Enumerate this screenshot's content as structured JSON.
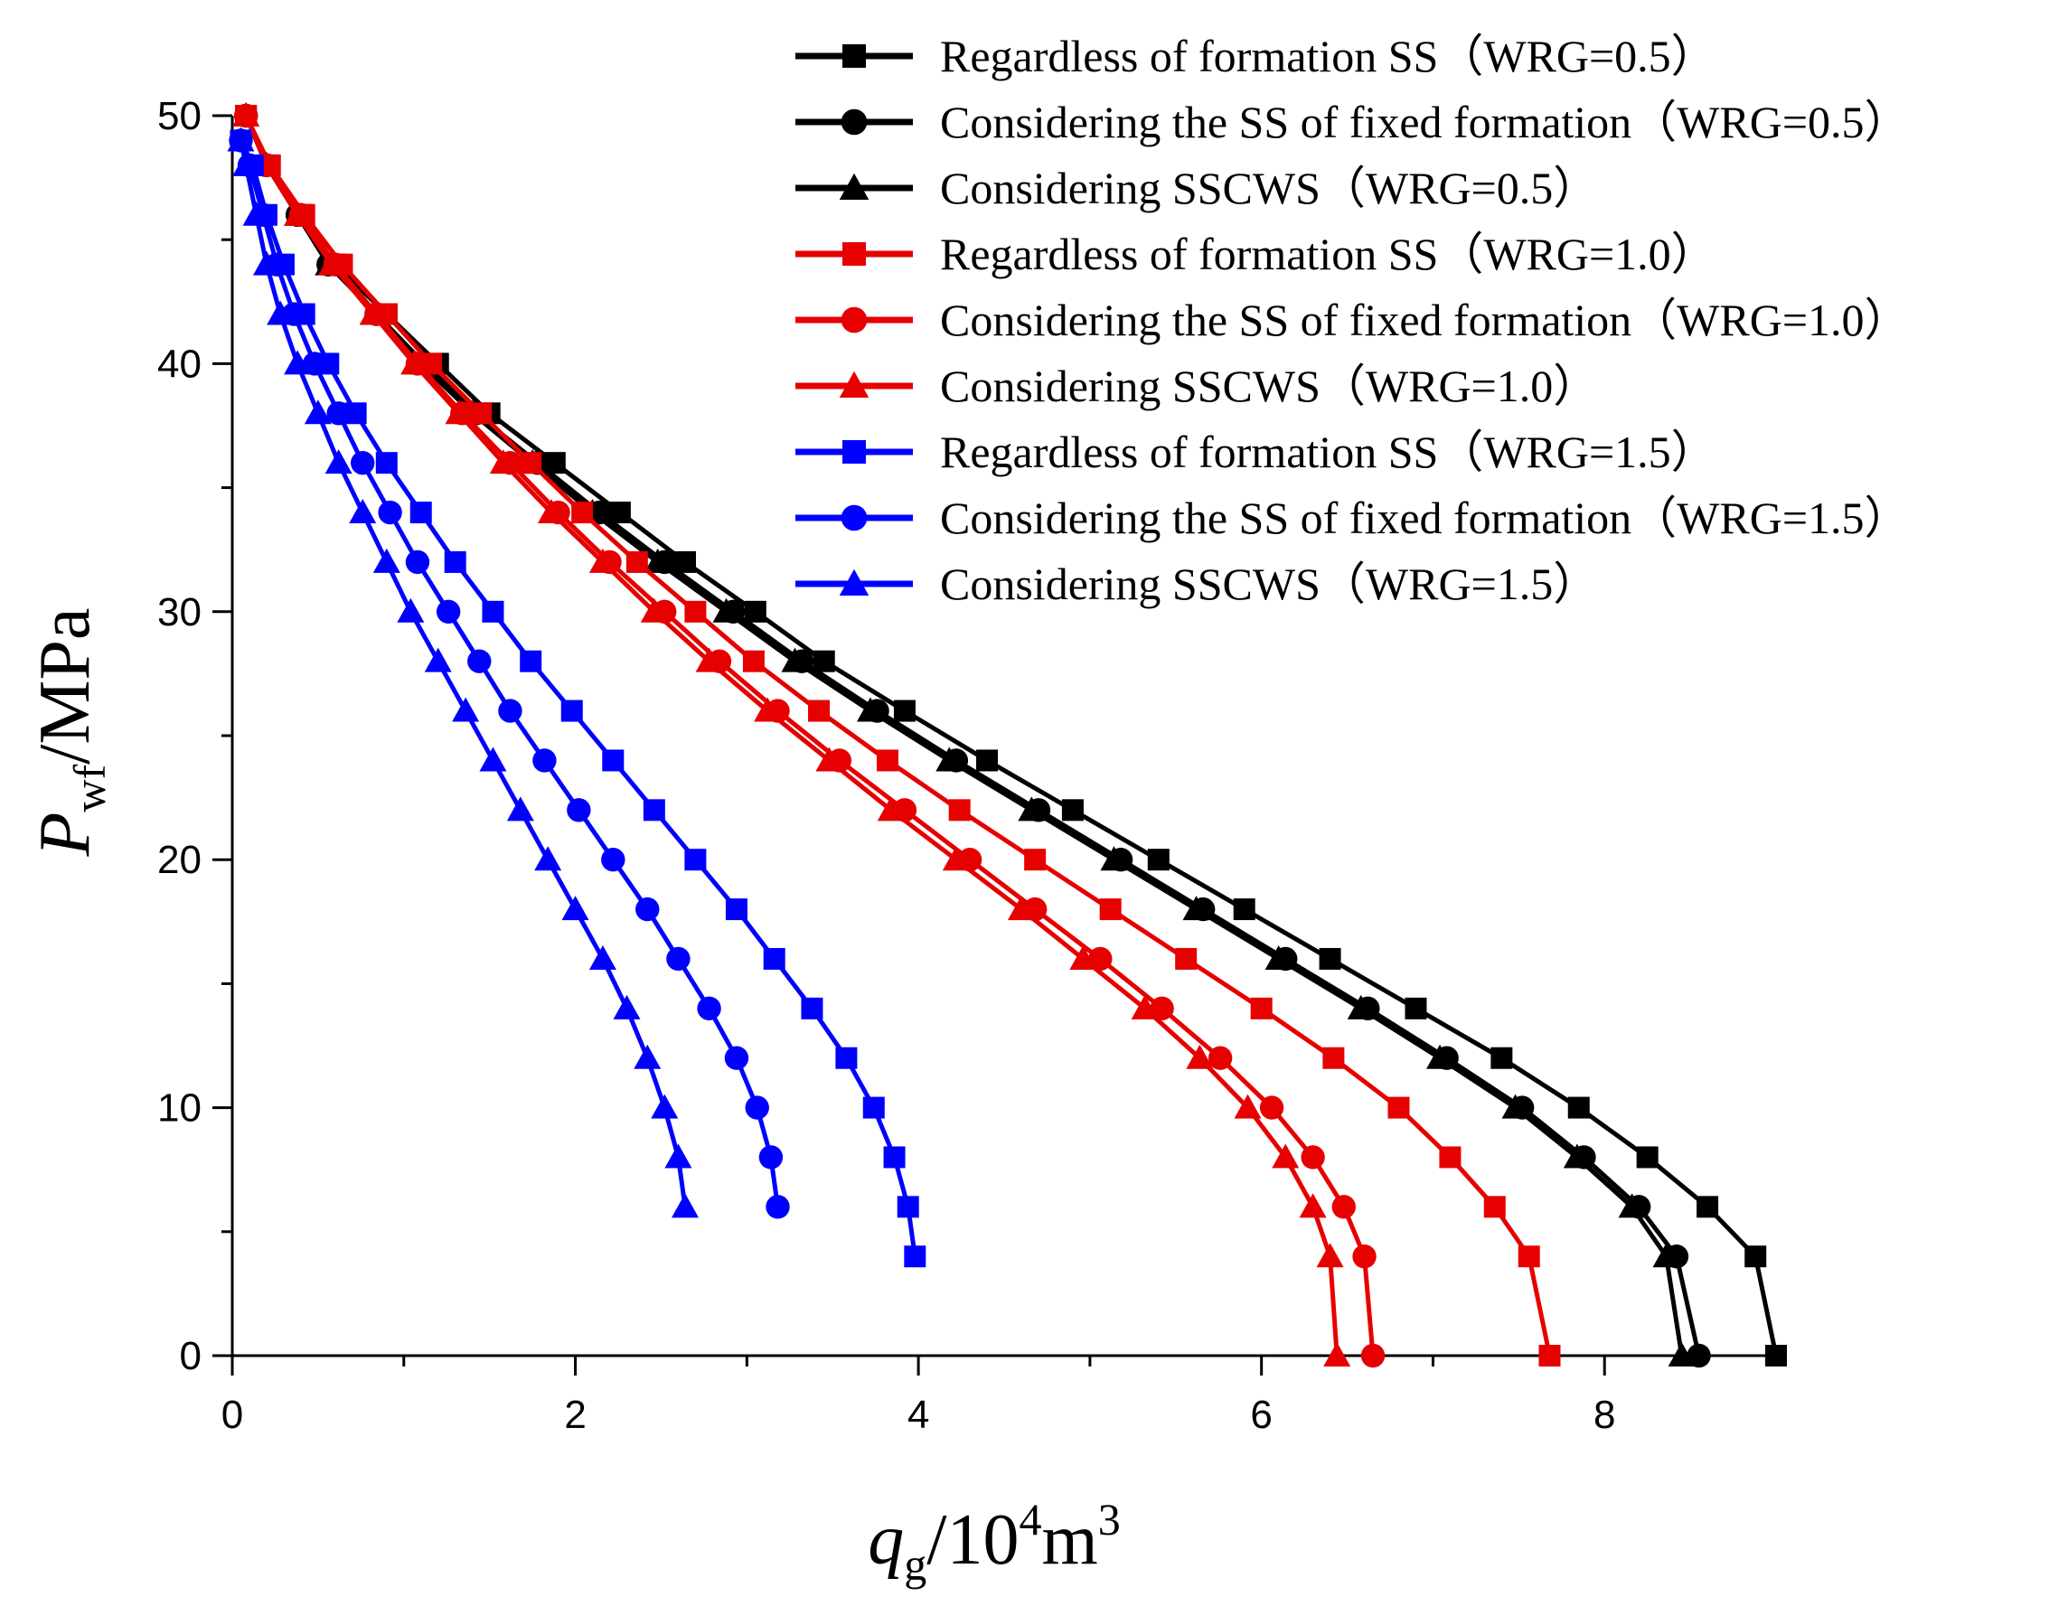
{
  "chart_data": {
    "type": "line",
    "title": "",
    "xlabel": {
      "main": "q",
      "sub": "g",
      "rest": "/10",
      "sup": "4",
      "unit": "m",
      "unit_sup": "3"
    },
    "ylabel": {
      "main": "P",
      "sub": "wf",
      "rest": "/MPa"
    },
    "xlim": [
      0,
      9
    ],
    "ylim": [
      0,
      50
    ],
    "x_ticks": [
      0,
      2,
      4,
      6,
      8
    ],
    "y_ticks": [
      0,
      10,
      20,
      30,
      40,
      50
    ],
    "grid": false,
    "legend_position": "top-right",
    "series": [
      {
        "name": "Regardless of formation SS（WRG=0.5）",
        "color": "#000000",
        "marker": "square",
        "x": [
          0.08,
          0.2,
          0.4,
          0.6,
          0.9,
          1.2,
          1.5,
          1.88,
          2.26,
          2.64,
          3.05,
          3.45,
          3.92,
          4.4,
          4.9,
          5.4,
          5.9,
          6.4,
          6.9,
          7.4,
          7.85,
          8.25,
          8.6,
          8.88,
          9.0
        ],
        "y": [
          50,
          48,
          46,
          44,
          42,
          40,
          38,
          36,
          34,
          32,
          30,
          28,
          26,
          24,
          22,
          20,
          18,
          16,
          14,
          12,
          10,
          8,
          6,
          4,
          0
        ]
      },
      {
        "name": "Considering the SS of fixed formation（WRG=0.5）",
        "color": "#000000",
        "marker": "circle",
        "x": [
          0.08,
          0.2,
          0.38,
          0.56,
          0.84,
          1.12,
          1.42,
          1.78,
          2.14,
          2.52,
          2.92,
          3.32,
          3.76,
          4.22,
          4.7,
          5.18,
          5.66,
          6.14,
          6.62,
          7.08,
          7.52,
          7.88,
          8.2,
          8.42,
          8.55
        ],
        "y": [
          50,
          48,
          46,
          44,
          42,
          40,
          38,
          36,
          34,
          32,
          30,
          28,
          26,
          24,
          22,
          20,
          18,
          16,
          14,
          12,
          10,
          8,
          6,
          4,
          0
        ]
      },
      {
        "name": "Considering SSCWS（WRG=0.5）",
        "color": "#000000",
        "marker": "triangle",
        "x": [
          0.08,
          0.2,
          0.38,
          0.56,
          0.84,
          1.1,
          1.4,
          1.75,
          2.1,
          2.48,
          2.88,
          3.28,
          3.72,
          4.18,
          4.66,
          5.14,
          5.62,
          6.1,
          6.58,
          7.04,
          7.48,
          7.84,
          8.16,
          8.36,
          8.45
        ],
        "y": [
          50,
          48,
          46,
          44,
          42,
          40,
          38,
          36,
          34,
          32,
          30,
          28,
          26,
          24,
          22,
          20,
          18,
          16,
          14,
          12,
          10,
          8,
          6,
          4,
          0
        ]
      },
      {
        "name": "Regardless of formation SS（WRG=1.0）",
        "color": "#e60000",
        "marker": "square",
        "x": [
          0.08,
          0.22,
          0.42,
          0.64,
          0.9,
          1.16,
          1.45,
          1.74,
          2.04,
          2.36,
          2.7,
          3.04,
          3.42,
          3.82,
          4.24,
          4.68,
          5.12,
          5.56,
          6.0,
          6.42,
          6.8,
          7.1,
          7.36,
          7.56,
          7.68
        ],
        "y": [
          50,
          48,
          46,
          44,
          42,
          40,
          38,
          36,
          34,
          32,
          30,
          28,
          26,
          24,
          22,
          20,
          18,
          16,
          14,
          12,
          10,
          8,
          6,
          4,
          0
        ]
      },
      {
        "name": "Considering the SS of fixed formation（WRG=1.0）",
        "color": "#e60000",
        "marker": "circle",
        "x": [
          0.08,
          0.2,
          0.4,
          0.6,
          0.84,
          1.08,
          1.34,
          1.62,
          1.9,
          2.2,
          2.52,
          2.84,
          3.18,
          3.54,
          3.92,
          4.3,
          4.68,
          5.06,
          5.42,
          5.76,
          6.06,
          6.3,
          6.48,
          6.6,
          6.65
        ],
        "y": [
          50,
          48,
          46,
          44,
          42,
          40,
          38,
          36,
          34,
          32,
          30,
          28,
          26,
          24,
          22,
          20,
          18,
          16,
          14,
          12,
          10,
          8,
          6,
          4,
          0
        ]
      },
      {
        "name": "Considering SSCWS（WRG=1.0）",
        "color": "#e60000",
        "marker": "triangle",
        "x": [
          0.08,
          0.2,
          0.38,
          0.58,
          0.82,
          1.06,
          1.32,
          1.58,
          1.86,
          2.16,
          2.46,
          2.78,
          3.12,
          3.48,
          3.84,
          4.22,
          4.6,
          4.96,
          5.32,
          5.64,
          5.92,
          6.14,
          6.3,
          6.4,
          6.44
        ],
        "y": [
          50,
          48,
          46,
          44,
          42,
          40,
          38,
          36,
          34,
          32,
          30,
          28,
          26,
          24,
          22,
          20,
          18,
          16,
          14,
          12,
          10,
          8,
          6,
          4,
          0
        ]
      },
      {
        "name": "Regardless of formation SS（WRG=1.5）",
        "color": "#0000ff",
        "marker": "square",
        "x": [
          0.05,
          0.12,
          0.2,
          0.3,
          0.42,
          0.56,
          0.72,
          0.9,
          1.1,
          1.3,
          1.52,
          1.74,
          1.98,
          2.22,
          2.46,
          2.7,
          2.94,
          3.16,
          3.38,
          3.58,
          3.74,
          3.86,
          3.94,
          3.98
        ],
        "y": [
          49,
          48,
          46,
          44,
          42,
          40,
          38,
          36,
          34,
          32,
          30,
          28,
          26,
          24,
          22,
          20,
          18,
          16,
          14,
          12,
          10,
          8,
          6,
          4
        ]
      },
      {
        "name": "Considering the SS of fixed formation（WRG=1.5）",
        "color": "#0000ff",
        "marker": "circle",
        "x": [
          0.05,
          0.1,
          0.18,
          0.26,
          0.36,
          0.48,
          0.62,
          0.76,
          0.92,
          1.08,
          1.26,
          1.44,
          1.62,
          1.82,
          2.02,
          2.22,
          2.42,
          2.6,
          2.78,
          2.94,
          3.06,
          3.14,
          3.18
        ],
        "y": [
          49,
          48,
          46,
          44,
          42,
          40,
          38,
          36,
          34,
          32,
          30,
          28,
          26,
          24,
          22,
          20,
          18,
          16,
          14,
          12,
          10,
          8,
          6
        ]
      },
      {
        "name": "Considering SSCWS（WRG=1.5）",
        "color": "#0000ff",
        "marker": "triangle",
        "x": [
          0.05,
          0.08,
          0.14,
          0.2,
          0.28,
          0.38,
          0.5,
          0.62,
          0.76,
          0.9,
          1.04,
          1.2,
          1.36,
          1.52,
          1.68,
          1.84,
          2.0,
          2.16,
          2.3,
          2.42,
          2.52,
          2.6,
          2.64
        ],
        "y": [
          49,
          48,
          46,
          44,
          42,
          40,
          38,
          36,
          34,
          32,
          30,
          28,
          26,
          24,
          22,
          20,
          18,
          16,
          14,
          12,
          10,
          8,
          6
        ]
      }
    ]
  }
}
